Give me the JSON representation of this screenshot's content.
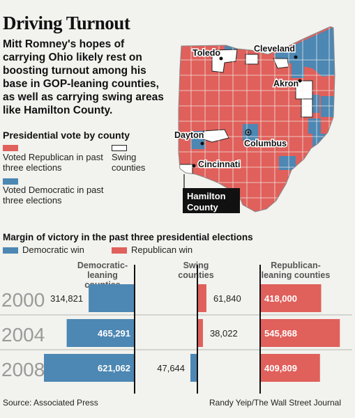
{
  "header": {
    "title": "Driving Turnout",
    "subtitle": "Mitt Romney's hopes of carrying Ohio likely rest on boosting turnout among his base in GOP-leaning counties, as well as carrying swing areas like Hamilton County."
  },
  "legend": {
    "heading": "Presidential vote by county",
    "republican": "Voted Republican in past three elections",
    "swing": "Swing counties",
    "democratic": "Voted Democratic in past three elections"
  },
  "map": {
    "cities": [
      "Toledo",
      "Cleveland",
      "Akron",
      "Dayton",
      "Columbus",
      "Cincinnati"
    ],
    "highlight": "Hamilton County"
  },
  "colors": {
    "republican": "#e0605b",
    "democratic": "#4d87b3",
    "swing": "#ffffff",
    "border": "#111111"
  },
  "chart_data": {
    "type": "bar",
    "title": "Margin of victory in the past three presidential elections",
    "legend": [
      "Democratic win",
      "Republican win"
    ],
    "categories": [
      "2000",
      "2004",
      "2008"
    ],
    "groups": [
      {
        "name": "Democratic-leaning counties",
        "winner": [
          "Democratic",
          "Democratic",
          "Democratic"
        ],
        "values": [
          314821,
          465291,
          621062
        ]
      },
      {
        "name": "Swing counties",
        "winner": [
          "Republican",
          "Republican",
          "Democratic"
        ],
        "values": [
          61840,
          38022,
          47644
        ]
      },
      {
        "name": "Republican-leaning counties",
        "winner": [
          "Republican",
          "Republican",
          "Republican"
        ],
        "values": [
          418000,
          545868,
          409809
        ]
      }
    ],
    "value_labels": [
      [
        "314,821",
        "465,291",
        "621,062"
      ],
      [
        "61,840",
        "38,022",
        "47,644"
      ],
      [
        "418,000",
        "545,868",
        "409,809"
      ]
    ]
  },
  "footer": {
    "source": "Source: Associated Press",
    "credit": "Randy Yeip/The Wall Street Journal"
  }
}
